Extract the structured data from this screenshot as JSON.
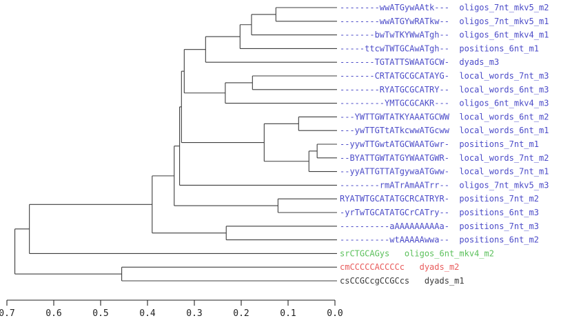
{
  "figure": {
    "background": "#ffffff",
    "description": "Hierarchical clustering dendrogram of discovered sequence motifs, leaves on the right, similarity scale axis at bottom"
  },
  "chart_data": {
    "type": "dendrogram",
    "orientation": "horizontal-right-aligned-leaves",
    "title": "",
    "xlabel": "",
    "ylabel": "",
    "grid": false,
    "colors": {
      "blue": "#4B4BC8",
      "green": "#5CC05C",
      "red": "#E85B5B",
      "black": "#3A3A3A",
      "line": "#3C3C3C",
      "axis": "#222222"
    },
    "axis": {
      "range": [
        0.7,
        0.0
      ],
      "ticks": [
        "0.7",
        "0.6",
        "0.5",
        "0.4",
        "0.3",
        "0.2",
        "0.1",
        "0.0"
      ],
      "values": [
        0.7,
        0.6,
        0.5,
        0.4,
        0.3,
        0.2,
        0.1,
        0.0
      ]
    },
    "leaves": [
      {
        "motif": "--------wwATGywAAtk---",
        "sep": "  ",
        "program": "oligos_7nt_mkv5_m2",
        "color": "blue"
      },
      {
        "motif": "--------wwATGYwRATkw--",
        "sep": "  ",
        "program": "oligos_7nt_mkv5_m1",
        "color": "blue"
      },
      {
        "motif": "-------bwTwTKYWwATgh--",
        "sep": "  ",
        "program": "oligos_6nt_mkv4_m1",
        "color": "blue"
      },
      {
        "motif": "-----ttcwTWTGCAwATgh--",
        "sep": "  ",
        "program": "positions_6nt_m1",
        "color": "blue"
      },
      {
        "motif": "-------TGTATTSWAATGCW-",
        "sep": "  ",
        "program": "dyads_m3",
        "color": "blue"
      },
      {
        "motif": "-------CRTATGCGCATAYG-",
        "sep": "  ",
        "program": "local_words_7nt_m3",
        "color": "blue"
      },
      {
        "motif": "--------RYATGCGCATRY--",
        "sep": "  ",
        "program": "local_words_6nt_m3",
        "color": "blue"
      },
      {
        "motif": "---------YMTGCGCAKR---",
        "sep": "  ",
        "program": "oligos_6nt_mkv4_m3",
        "color": "blue"
      },
      {
        "motif": "---YWTTGWTATKYAAATGCWW",
        "sep": "  ",
        "program": "local_words_6nt_m2",
        "color": "blue"
      },
      {
        "motif": "---ywTTGTtATkcwwATGcww",
        "sep": "  ",
        "program": "local_words_6nt_m1",
        "color": "blue"
      },
      {
        "motif": "--yywTTGwtATGCWAATGwr-",
        "sep": "  ",
        "program": "positions_7nt_m1",
        "color": "blue"
      },
      {
        "motif": "--BYATTGWTATGYWAATGWR-",
        "sep": "  ",
        "program": "local_words_7nt_m2",
        "color": "blue"
      },
      {
        "motif": "--yyATTGTTATgywaATGww-",
        "sep": "  ",
        "program": "local_words_7nt_m1",
        "color": "blue"
      },
      {
        "motif": "--------rmATrAmAATrr--",
        "sep": "  ",
        "program": "oligos_7nt_mkv5_m3",
        "color": "blue"
      },
      {
        "motif": "RYATWTGCATATGCRCATRYR-",
        "sep": "  ",
        "program": "positions_7nt_m2",
        "color": "blue"
      },
      {
        "motif": "-yrTwTGCATATGCrCATry--",
        "sep": "  ",
        "program": "positions_6nt_m3",
        "color": "blue"
      },
      {
        "motif": "----------aAAAAAAAAAa-",
        "sep": "  ",
        "program": "positions_7nt_m3",
        "color": "blue"
      },
      {
        "motif": "----------wtAAAAAwwa--",
        "sep": "  ",
        "program": "positions_6nt_m2",
        "color": "blue"
      },
      {
        "motif": "srCTGCAGys",
        "sep": "   ",
        "program": "oligos_6nt_mkv4_m2",
        "color": "green"
      },
      {
        "motif": "cmCCCCCACCCCc",
        "sep": "   ",
        "program": "dyads_m2",
        "color": "red"
      },
      {
        "motif": "csCCGCcgCCGCcs",
        "sep": "   ",
        "program": "dyads_m1",
        "color": "black"
      }
    ],
    "tree": {
      "h": 0.683,
      "c": [
        {
          "h": 0.652,
          "c": [
            {
              "h": 0.39,
              "c": [
                {
                  "h": 0.343,
                  "c": [
                    {
                      "h": 0.3315,
                      "c": [
                        {
                          "h": 0.3275,
                          "c": [
                            {
                              "h": 0.3216,
                              "c": [
                                {
                                  "h": 0.276,
                                  "c": [
                                    {
                                      "h": 0.2025,
                                      "c": [
                                        {
                                          "h": 0.178,
                                          "c": [
                                            {
                                              "h": 0.126,
                                              "c": [
                                                0,
                                                1
                                              ]
                                            },
                                            2
                                          ]
                                        },
                                        3
                                      ]
                                    },
                                    4
                                  ]
                                },
                                {
                                  "h": 0.234,
                                  "c": [
                                    {
                                      "h": 0.176,
                                      "c": [
                                        5,
                                        6
                                      ]
                                    },
                                    7
                                  ]
                                }
                              ]
                            },
                            {
                              "h": 0.151,
                              "c": [
                                {
                                  "h": 0.0775,
                                  "c": [
                                    8,
                                    9
                                  ]
                                },
                                {
                                  "h": 0.0555,
                                  "c": [
                                    {
                                      "h": 0.038,
                                      "c": [
                                        10,
                                        11
                                      ]
                                    },
                                    12
                                  ]
                                }
                              ]
                            }
                          ]
                        },
                        13
                      ]
                    },
                    {
                      "h": 0.1215,
                      "c": [
                        14,
                        15
                      ]
                    }
                  ]
                },
                {
                  "h": 0.232,
                  "c": [
                    16,
                    17
                  ]
                }
              ]
            },
            18
          ]
        },
        {
          "h": 0.455,
          "c": [
            19,
            20
          ]
        }
      ]
    }
  }
}
